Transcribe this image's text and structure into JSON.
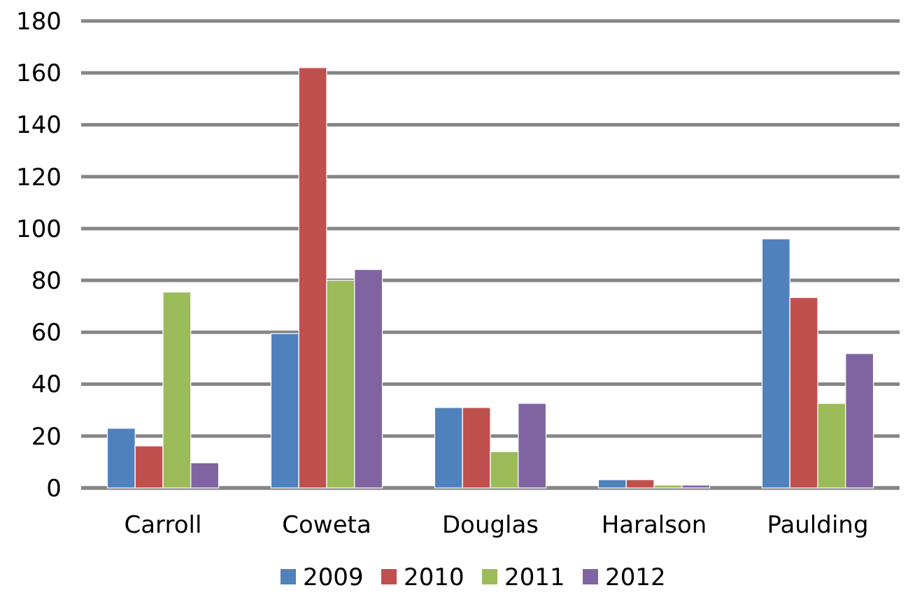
{
  "chart_data": {
    "type": "bar",
    "categories": [
      "Carroll",
      "Coweta",
      "Douglas",
      "Haralson",
      "Paulding"
    ],
    "series": [
      {
        "name": "2009",
        "color": "#4f81bd",
        "values": [
          23,
          59.5,
          31,
          3.2,
          96
        ]
      },
      {
        "name": "2010",
        "color": "#c0504d",
        "values": [
          16.2,
          162,
          31,
          3.2,
          73.4
        ]
      },
      {
        "name": "2011",
        "color": "#9bbb59",
        "values": [
          75.5,
          80,
          14,
          1.1,
          32.6
        ]
      },
      {
        "name": "2012",
        "color": "#8064a2",
        "values": [
          9.7,
          84.2,
          32.6,
          1.1,
          51.8
        ]
      }
    ],
    "ylim": [
      0,
      180
    ],
    "yticks": [
      0,
      20,
      40,
      60,
      80,
      100,
      120,
      140,
      160,
      180
    ],
    "grid": "y",
    "legend": "bottom"
  }
}
